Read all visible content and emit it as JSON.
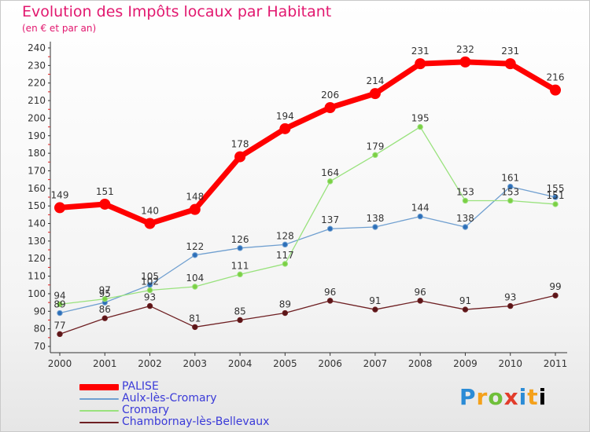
{
  "chart_data": {
    "type": "line",
    "title": "Evolution des Impôts locaux par Habitant",
    "subtitle": "(en € et par an)",
    "xlabel": "",
    "ylabel": "",
    "x": [
      "2000",
      "2001",
      "2002",
      "2003",
      "2004",
      "2005",
      "2006",
      "2007",
      "2008",
      "2009",
      "2010",
      "2011"
    ],
    "ylim": [
      70,
      240
    ],
    "yticks": [
      70,
      80,
      90,
      100,
      110,
      120,
      130,
      140,
      150,
      160,
      170,
      180,
      190,
      200,
      210,
      220,
      230,
      240
    ],
    "grid": false,
    "legend_position": "bottom-left",
    "series": [
      {
        "name": "PALISE",
        "color": "#ff0000",
        "values": [
          149,
          151,
          140,
          148,
          178,
          194,
          206,
          214,
          231,
          232,
          231,
          216
        ]
      },
      {
        "name": "Aulx-lès-Cromary",
        "color": "#6f9fd0",
        "values": [
          89,
          95,
          105,
          122,
          126,
          128,
          137,
          138,
          144,
          138,
          161,
          155
        ]
      },
      {
        "name": "Cromary",
        "color": "#99e27d",
        "values": [
          94,
          97,
          102,
          104,
          111,
          117,
          164,
          179,
          195,
          153,
          153,
          151
        ]
      },
      {
        "name": "Chambornay-lès-Bellevaux",
        "color": "#6e1f22",
        "values": [
          77,
          86,
          93,
          81,
          85,
          89,
          96,
          91,
          96,
          91,
          93,
          99
        ]
      }
    ]
  },
  "logo": {
    "letters": [
      "P",
      "r",
      "o",
      "x",
      "i",
      "t",
      "i"
    ],
    "text": "Proxiti"
  }
}
